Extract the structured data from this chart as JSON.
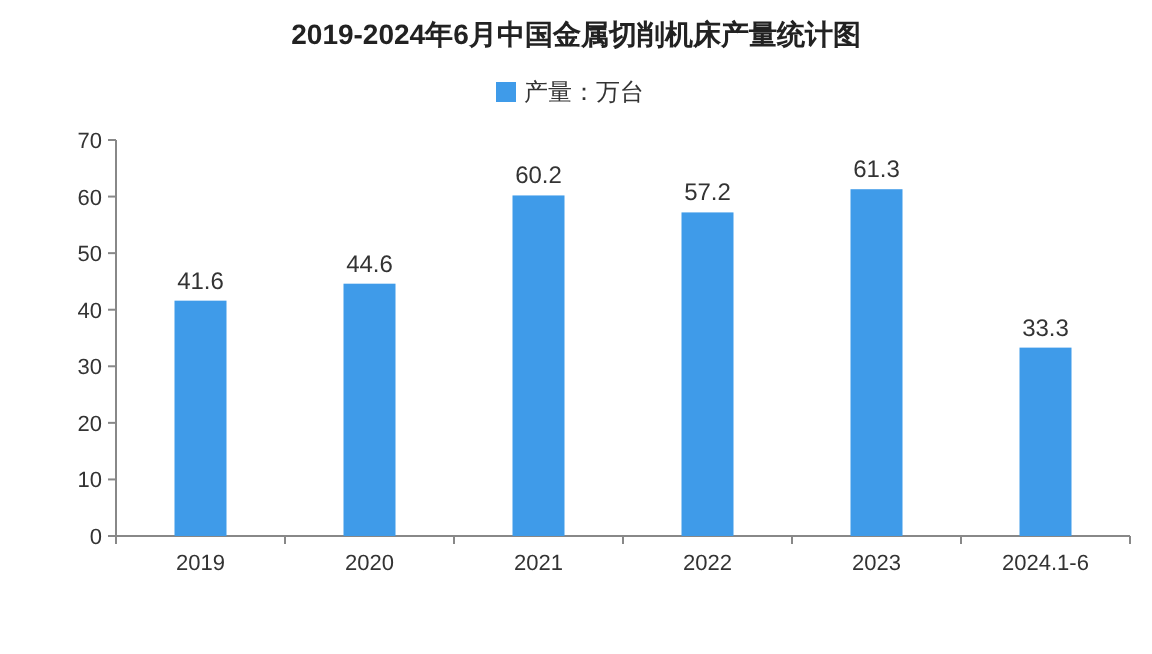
{
  "chart_data": {
    "type": "bar",
    "title": "2019-2024年6月中国金属切削机床产量统计图",
    "categories": [
      "2019",
      "2020",
      "2021",
      "2022",
      "2023",
      "2024.1-6"
    ],
    "series": [
      {
        "name": "产量：万台",
        "color": "#3f9be9",
        "values": [
          41.6,
          44.6,
          60.2,
          57.2,
          61.3,
          33.3
        ]
      }
    ],
    "ylim": [
      0,
      70
    ],
    "yticks": [
      0,
      10,
      20,
      30,
      40,
      50,
      60,
      70
    ],
    "data_labels": true,
    "legend": "top"
  }
}
